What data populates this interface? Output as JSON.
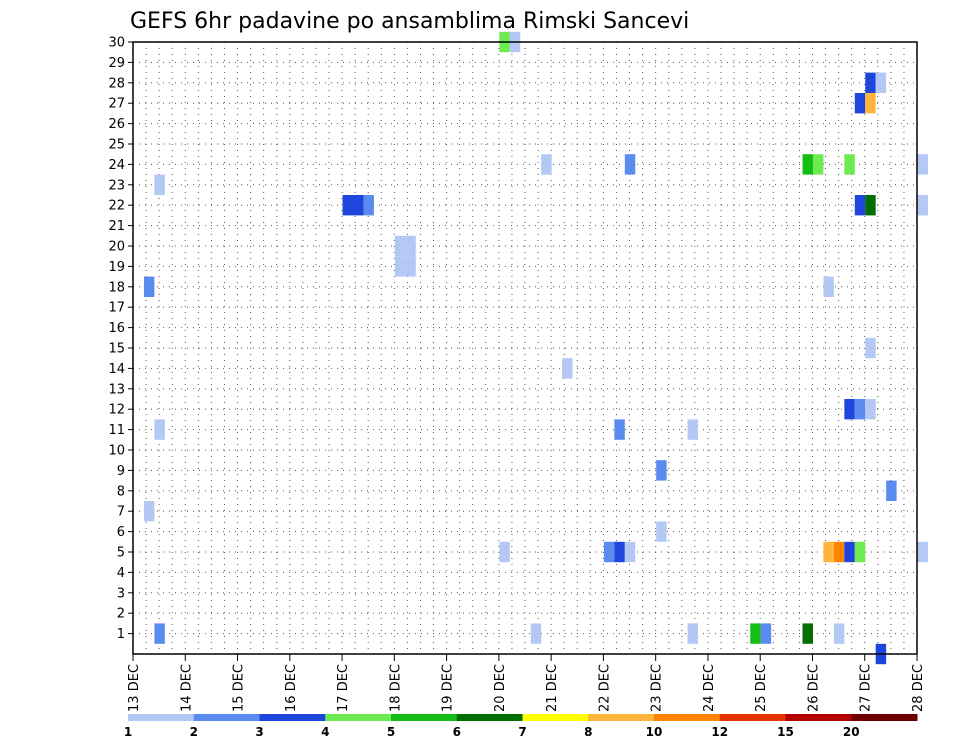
{
  "chart_data": {
    "type": "heatmap",
    "title": "GEFS 6hr padavine po ansamblima Rimski Sancevi",
    "y_ticks": [
      "1",
      "2",
      "3",
      "4",
      "5",
      "6",
      "7",
      "8",
      "9",
      "10",
      "11",
      "12",
      "13",
      "14",
      "15",
      "16",
      "17",
      "18",
      "19",
      "20",
      "21",
      "22",
      "23",
      "24",
      "25",
      "26",
      "27",
      "28",
      "29",
      "30"
    ],
    "x_ticks": [
      "13 DEC",
      "14 DEC",
      "15 DEC",
      "16 DEC",
      "17 DEC",
      "18 DEC",
      "19 DEC",
      "20 DEC",
      "21 DEC",
      "22 DEC",
      "23 DEC",
      "24 DEC",
      "25 DEC",
      "26 DEC",
      "27 DEC",
      "28 DEC"
    ],
    "x_range": [
      "13 DEC 00Z",
      "28 DEC 00Z"
    ],
    "y_range": [
      0,
      30
    ],
    "grid": true,
    "colorbar": {
      "colors": [
        "#b4c8f5",
        "#5a8cf0",
        "#1e46dc",
        "#6eeb50",
        "#14be14",
        "#006e00",
        "#ffff00",
        "#ffb43c",
        "#ff8200",
        "#e63200",
        "#b40000",
        "#6e0000"
      ],
      "labels": [
        "1",
        "2",
        "3",
        "4",
        "5",
        "6",
        "7",
        "8",
        "10",
        "12",
        "15",
        "20"
      ]
    },
    "cells": [
      {
        "x": 0.4,
        "y": 1,
        "color": "#5a8cf0"
      },
      {
        "x": 7.6,
        "y": 1,
        "color": "#b4c8f5"
      },
      {
        "x": 10.6,
        "y": 1,
        "color": "#b4c8f5"
      },
      {
        "x": 11.8,
        "y": 1,
        "color": "#14be14"
      },
      {
        "x": 12.0,
        "y": 1,
        "color": "#5a8cf0"
      },
      {
        "x": 12.8,
        "y": 1,
        "color": "#006e00"
      },
      {
        "x": 13.4,
        "y": 1,
        "color": "#b4c8f5"
      },
      {
        "x": 14.2,
        "y": 0,
        "color": "#1e46dc"
      },
      {
        "x": 7.0,
        "y": 5,
        "color": "#b4c8f5"
      },
      {
        "x": 9.0,
        "y": 5,
        "color": "#5a8cf0"
      },
      {
        "x": 9.2,
        "y": 5,
        "color": "#1e46dc"
      },
      {
        "x": 9.4,
        "y": 5,
        "color": "#b4c8f5"
      },
      {
        "x": 13.2,
        "y": 5,
        "color": "#ffb43c"
      },
      {
        "x": 13.4,
        "y": 5,
        "color": "#ff8200"
      },
      {
        "x": 13.6,
        "y": 5,
        "color": "#1e46dc"
      },
      {
        "x": 13.8,
        "y": 5,
        "color": "#6eeb50"
      },
      {
        "x": 15.0,
        "y": 5,
        "color": "#b4c8f5"
      },
      {
        "x": 10.0,
        "y": 6,
        "color": "#b4c8f5"
      },
      {
        "x": 0.2,
        "y": 7,
        "color": "#b4c8f5"
      },
      {
        "x": 14.4,
        "y": 8,
        "color": "#5a8cf0"
      },
      {
        "x": 10.0,
        "y": 9,
        "color": "#5a8cf0"
      },
      {
        "x": 0.4,
        "y": 11,
        "color": "#b4c8f5"
      },
      {
        "x": 9.2,
        "y": 11,
        "color": "#5a8cf0"
      },
      {
        "x": 10.6,
        "y": 11,
        "color": "#b4c8f5"
      },
      {
        "x": 13.6,
        "y": 12,
        "color": "#1e46dc"
      },
      {
        "x": 13.8,
        "y": 12,
        "color": "#5a8cf0"
      },
      {
        "x": 14.0,
        "y": 12,
        "color": "#b4c8f5"
      },
      {
        "x": 8.2,
        "y": 14,
        "color": "#b4c8f5"
      },
      {
        "x": 14.0,
        "y": 15,
        "color": "#b4c8f5"
      },
      {
        "x": 0.2,
        "y": 18,
        "color": "#5a8cf0"
      },
      {
        "x": 13.2,
        "y": 18,
        "color": "#b4c8f5"
      },
      {
        "x": 5.0,
        "y": 19,
        "color": "#b4c8f5"
      },
      {
        "x": 5.2,
        "y": 19,
        "color": "#b4c8f5"
      },
      {
        "x": 5.0,
        "y": 20,
        "color": "#b4c8f5"
      },
      {
        "x": 5.2,
        "y": 20,
        "color": "#b4c8f5"
      },
      {
        "x": 4.0,
        "y": 22,
        "color": "#1e46dc"
      },
      {
        "x": 4.2,
        "y": 22,
        "color": "#1e46dc"
      },
      {
        "x": 4.4,
        "y": 22,
        "color": "#5a8cf0"
      },
      {
        "x": 13.8,
        "y": 22,
        "color": "#1e46dc"
      },
      {
        "x": 14.0,
        "y": 22,
        "color": "#006e00"
      },
      {
        "x": 15.0,
        "y": 22,
        "color": "#b4c8f5"
      },
      {
        "x": 0.4,
        "y": 23,
        "color": "#b4c8f5"
      },
      {
        "x": 7.8,
        "y": 24,
        "color": "#b4c8f5"
      },
      {
        "x": 9.4,
        "y": 24,
        "color": "#5a8cf0"
      },
      {
        "x": 12.8,
        "y": 24,
        "color": "#14be14"
      },
      {
        "x": 13.0,
        "y": 24,
        "color": "#6eeb50"
      },
      {
        "x": 13.6,
        "y": 24,
        "color": "#6eeb50"
      },
      {
        "x": 15.0,
        "y": 24,
        "color": "#b4c8f5"
      },
      {
        "x": 13.8,
        "y": 27,
        "color": "#1e46dc"
      },
      {
        "x": 14.0,
        "y": 27,
        "color": "#ffb43c"
      },
      {
        "x": 14.0,
        "y": 28,
        "color": "#1e46dc"
      },
      {
        "x": 14.2,
        "y": 28,
        "color": "#b4c8f5"
      },
      {
        "x": 7.0,
        "y": 30,
        "color": "#6eeb50"
      },
      {
        "x": 7.2,
        "y": 30,
        "color": "#b4c8f5"
      }
    ]
  }
}
